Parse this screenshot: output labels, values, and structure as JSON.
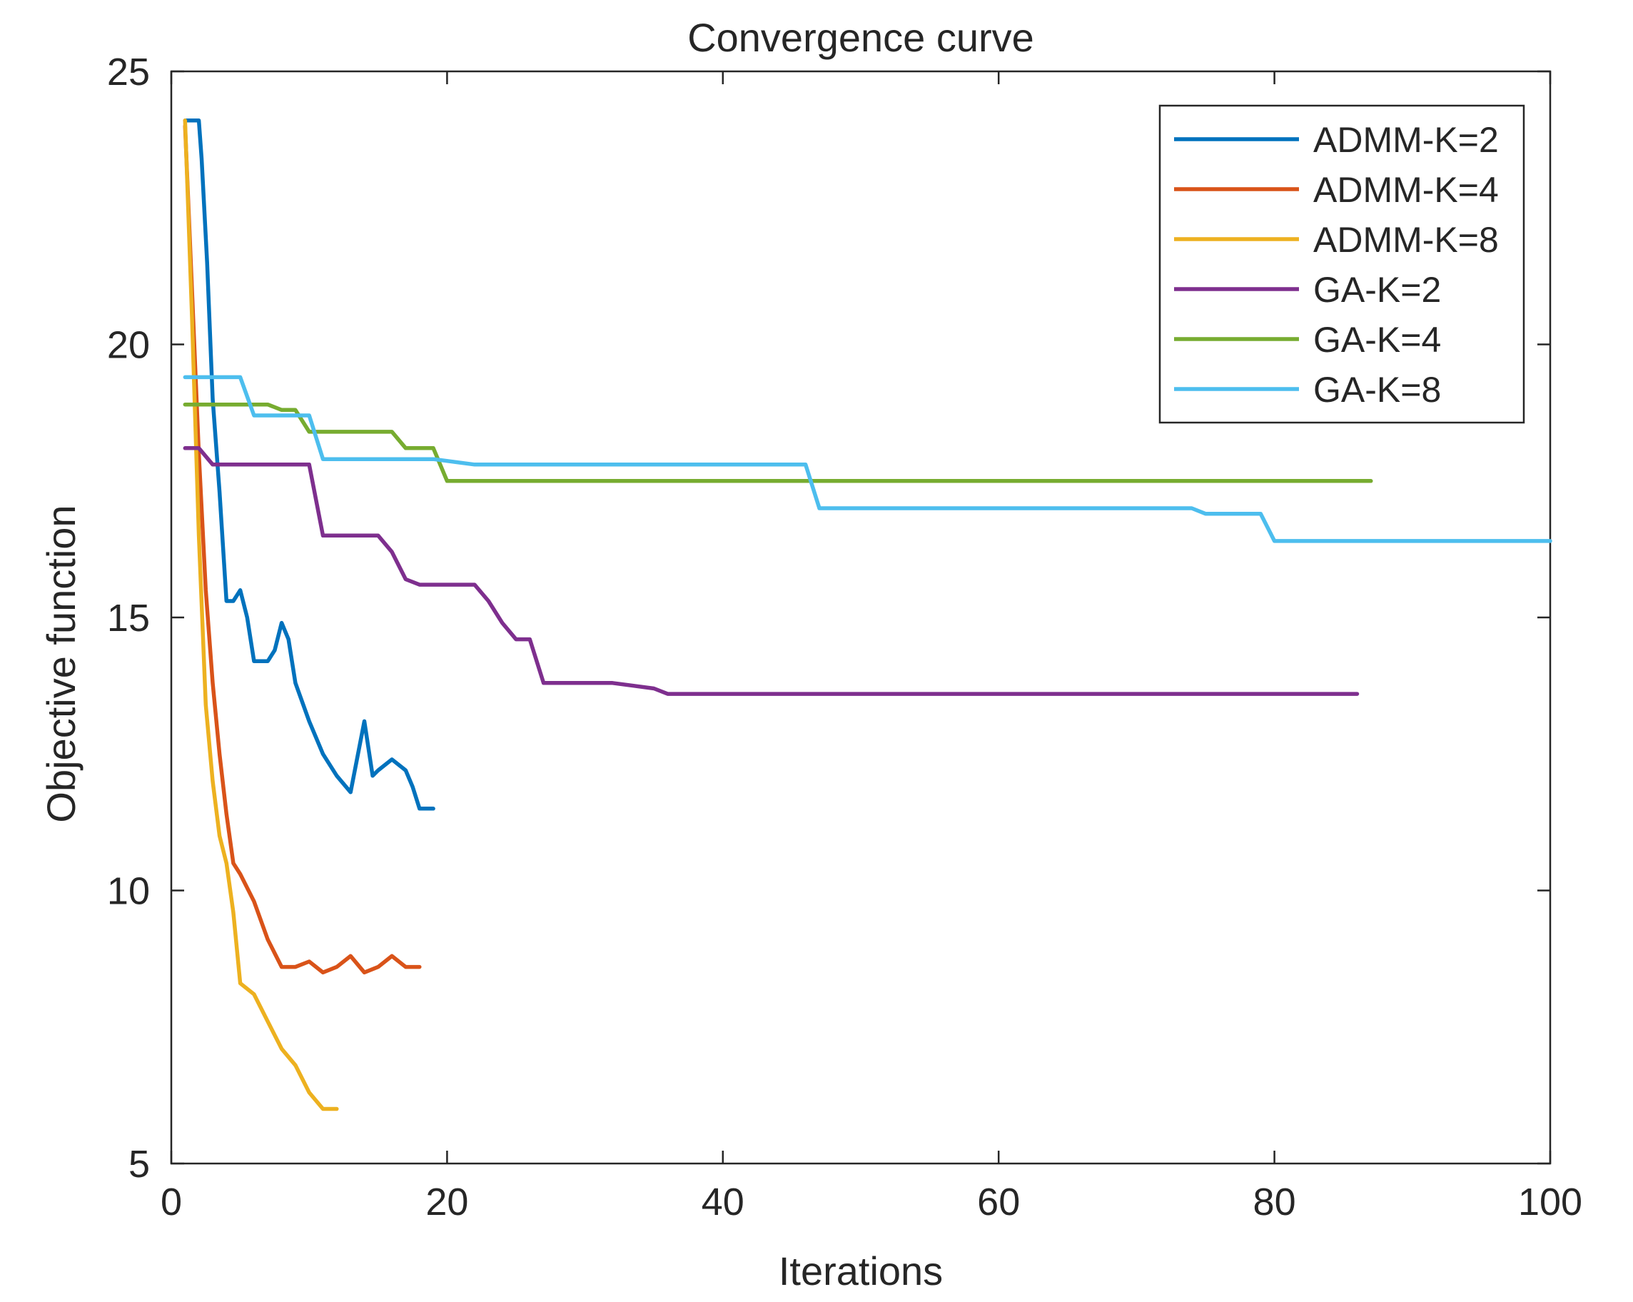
{
  "chart_data": {
    "type": "line",
    "title": "Convergence curve",
    "xlabel": "Iterations",
    "ylabel": "Objective function",
    "xlim": [
      0,
      100
    ],
    "ylim": [
      5,
      25
    ],
    "xticks": [
      0,
      20,
      40,
      60,
      80,
      100
    ],
    "yticks": [
      5,
      10,
      15,
      20,
      25
    ],
    "grid": false,
    "legend_position": "top-right",
    "series": [
      {
        "name": "ADMM-K=2",
        "color": "#0072BD",
        "x": [
          1,
          2,
          2.2,
          2.6,
          3,
          3.5,
          4,
          4.5,
          5,
          5.5,
          6,
          6.5,
          7,
          7.5,
          8,
          8.5,
          9,
          10,
          11,
          12,
          13,
          14,
          14.6,
          15,
          16,
          17,
          17.5,
          18,
          19
        ],
        "y": [
          24.1,
          24.1,
          23.4,
          21.5,
          19.0,
          17.3,
          15.3,
          15.3,
          15.5,
          15.0,
          14.2,
          14.2,
          14.2,
          14.4,
          14.9,
          14.6,
          13.8,
          13.1,
          12.5,
          12.1,
          11.8,
          13.1,
          12.1,
          12.2,
          12.4,
          12.2,
          11.9,
          11.5,
          11.5
        ]
      },
      {
        "name": "ADMM-K=4",
        "color": "#D95319",
        "x": [
          1,
          1.5,
          2,
          2.5,
          3,
          3.5,
          4,
          4.5,
          5,
          6,
          7,
          8,
          9,
          10,
          11,
          12,
          13,
          14,
          15,
          16,
          17,
          18
        ],
        "y": [
          24.0,
          21.0,
          18.0,
          15.5,
          13.8,
          12.5,
          11.4,
          10.5,
          10.3,
          9.8,
          9.1,
          8.6,
          8.6,
          8.7,
          8.5,
          8.6,
          8.8,
          8.5,
          8.6,
          8.8,
          8.6,
          8.6
        ]
      },
      {
        "name": "ADMM-K=8",
        "color": "#EDB120",
        "x": [
          1,
          1.5,
          2,
          2.5,
          3,
          3.5,
          4,
          4.5,
          5,
          6,
          7,
          8,
          9,
          10,
          11,
          12
        ],
        "y": [
          24.1,
          20.5,
          16.5,
          13.4,
          12.0,
          11.0,
          10.5,
          9.6,
          8.3,
          8.1,
          7.6,
          7.1,
          6.8,
          6.3,
          6.0,
          6.0
        ]
      },
      {
        "name": "GA-K=2",
        "color": "#7E2F8E",
        "x": [
          1,
          2,
          3,
          10,
          11,
          15,
          16,
          17,
          18,
          22,
          23,
          24,
          25,
          26,
          27,
          32,
          35,
          36,
          86
        ],
        "y": [
          18.1,
          18.1,
          17.8,
          17.8,
          16.5,
          16.5,
          16.2,
          15.7,
          15.6,
          15.6,
          15.3,
          14.9,
          14.6,
          14.6,
          13.8,
          13.8,
          13.7,
          13.6,
          13.6
        ]
      },
      {
        "name": "GA-K=4",
        "color": "#77AC30",
        "x": [
          1,
          7,
          8,
          9,
          10,
          16,
          17,
          19,
          20,
          87
        ],
        "y": [
          18.9,
          18.9,
          18.8,
          18.8,
          18.4,
          18.4,
          18.1,
          18.1,
          17.5,
          17.5
        ]
      },
      {
        "name": "GA-K=8",
        "color": "#4DBEEE",
        "x": [
          1,
          5,
          6,
          10,
          11,
          19,
          22,
          46,
          47,
          74,
          75,
          79,
          80,
          100
        ],
        "y": [
          19.4,
          19.4,
          18.7,
          18.7,
          17.9,
          17.9,
          17.8,
          17.8,
          17.0,
          17.0,
          16.9,
          16.9,
          16.4,
          16.4
        ]
      }
    ]
  }
}
